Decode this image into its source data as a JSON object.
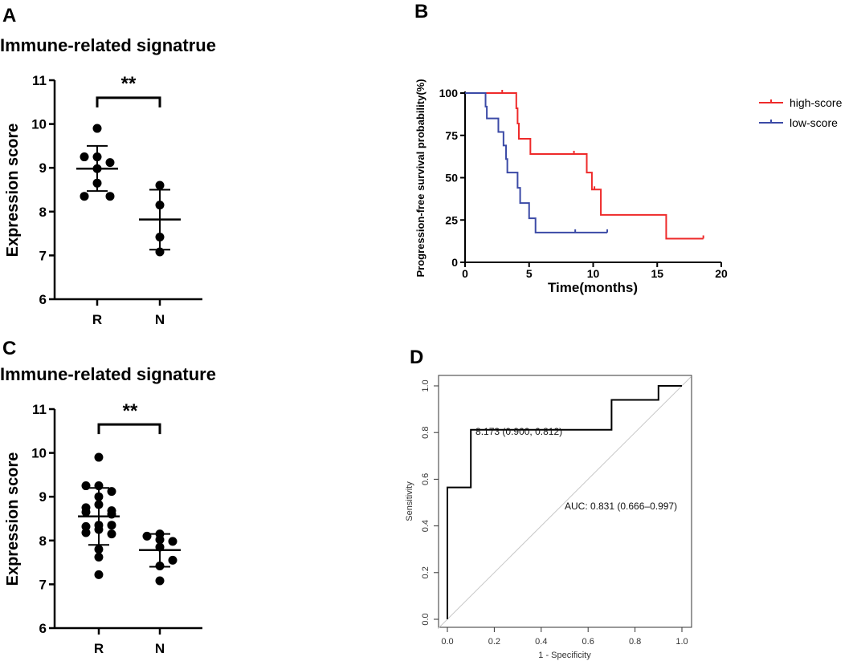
{
  "chart_data": [
    {
      "panel": "A",
      "type": "scatter",
      "title": "Immune-related signatrue",
      "xlabel": "",
      "ylabel": "Expression score",
      "categories": [
        "R",
        "N"
      ],
      "ylim": [
        6,
        11
      ],
      "yticks": [
        "6",
        "7",
        "8",
        "9",
        "10",
        "11"
      ],
      "series": [
        {
          "name": "R",
          "values": [
            9.9,
            9.25,
            9.25,
            9.12,
            8.98,
            8.65,
            8.35,
            8.35
          ],
          "mean": 8.98,
          "sd_low": 8.47,
          "sd_high": 9.5
        },
        {
          "name": "N",
          "values": [
            8.6,
            8.15,
            7.42,
            7.08
          ],
          "mean": 7.82,
          "sd_low": 7.13,
          "sd_high": 8.5
        }
      ],
      "significance": {
        "label": "**",
        "y": 10.6
      }
    },
    {
      "panel": "B",
      "type": "line",
      "subtype": "kaplan-meier",
      "xlabel": "Time(months)",
      "ylabel": "Progression-free survival probability(%)",
      "xlim": [
        0,
        20
      ],
      "ylim": [
        0,
        100
      ],
      "xticks": [
        "0",
        "5",
        "10",
        "15",
        "20"
      ],
      "yticks": [
        "0",
        "25",
        "50",
        "75",
        "100"
      ],
      "legend_position": "right",
      "series": [
        {
          "name": "high-score",
          "color": "#ee2a2a",
          "steps": [
            [
              0,
              100
            ],
            [
              4.0,
              91
            ],
            [
              4.1,
              82
            ],
            [
              4.2,
              73
            ],
            [
              5.1,
              64
            ],
            [
              9.5,
              53
            ],
            [
              9.9,
              43
            ],
            [
              10.6,
              28
            ],
            [
              15.7,
              14
            ]
          ],
          "end": 18.6,
          "censored": [
            [
              2.9,
              100
            ],
            [
              8.5,
              64
            ],
            [
              10.1,
              43
            ],
            [
              18.6,
              14
            ]
          ]
        },
        {
          "name": "low-score",
          "color": "#3b4aa6",
          "steps": [
            [
              0,
              100
            ],
            [
              1.6,
              92
            ],
            [
              1.7,
              85
            ],
            [
              2.6,
              77
            ],
            [
              3.0,
              69
            ],
            [
              3.2,
              61
            ],
            [
              3.3,
              53
            ],
            [
              4.1,
              44
            ],
            [
              4.3,
              35
            ],
            [
              5.0,
              26
            ],
            [
              5.5,
              17.6
            ]
          ],
          "end": 11.1,
          "censored": [
            [
              8.6,
              17.6
            ],
            [
              11.1,
              17.6
            ]
          ]
        }
      ]
    },
    {
      "panel": "C",
      "type": "scatter",
      "title": "Immune-related signature",
      "xlabel": "",
      "ylabel": "Expression score",
      "categories": [
        "R",
        "N"
      ],
      "ylim": [
        6,
        11
      ],
      "yticks": [
        "6",
        "7",
        "8",
        "9",
        "10",
        "11"
      ],
      "series": [
        {
          "name": "R",
          "values": [
            9.9,
            9.25,
            9.25,
            9.12,
            9.0,
            8.82,
            8.75,
            8.68,
            8.65,
            8.6,
            8.35,
            8.32,
            8.35,
            8.25,
            8.18,
            8.15,
            7.8,
            7.62,
            7.22
          ],
          "mean": 8.55,
          "sd_low": 7.9,
          "sd_high": 9.2
        },
        {
          "name": "N",
          "values": [
            8.15,
            8.1,
            7.98,
            8.02,
            7.85,
            7.55,
            7.42,
            7.08
          ],
          "mean": 7.78,
          "sd_low": 7.4,
          "sd_high": 8.15
        }
      ],
      "significance": {
        "label": "**",
        "y": 10.65
      }
    },
    {
      "panel": "D",
      "type": "line",
      "subtype": "roc",
      "xlabel": "1 - Specificity",
      "ylabel": "Sensitivity",
      "xlim": [
        0,
        1
      ],
      "ylim": [
        0,
        1
      ],
      "xticks": [
        "0.0",
        "0.2",
        "0.4",
        "0.6",
        "0.8",
        "1.0"
      ],
      "yticks": [
        "0.0",
        "0.2",
        "0.4",
        "0.6",
        "0.8",
        "1.0"
      ],
      "points": [
        [
          0,
          0
        ],
        [
          0,
          0.565
        ],
        [
          0.1,
          0.565
        ],
        [
          0.1,
          0.812
        ],
        [
          0.7,
          0.812
        ],
        [
          0.7,
          0.94
        ],
        [
          0.9,
          0.94
        ],
        [
          0.9,
          1
        ],
        [
          1,
          1
        ]
      ],
      "annotations": [
        {
          "text": "8.173 (0.900, 0.812)",
          "x": 0.12,
          "y": 0.79
        },
        {
          "text": "AUC: 0.831 (0.666–0.997)",
          "x": 0.5,
          "y": 0.47
        }
      ]
    }
  ],
  "panel_labels": [
    "A",
    "B",
    "C",
    "D"
  ]
}
